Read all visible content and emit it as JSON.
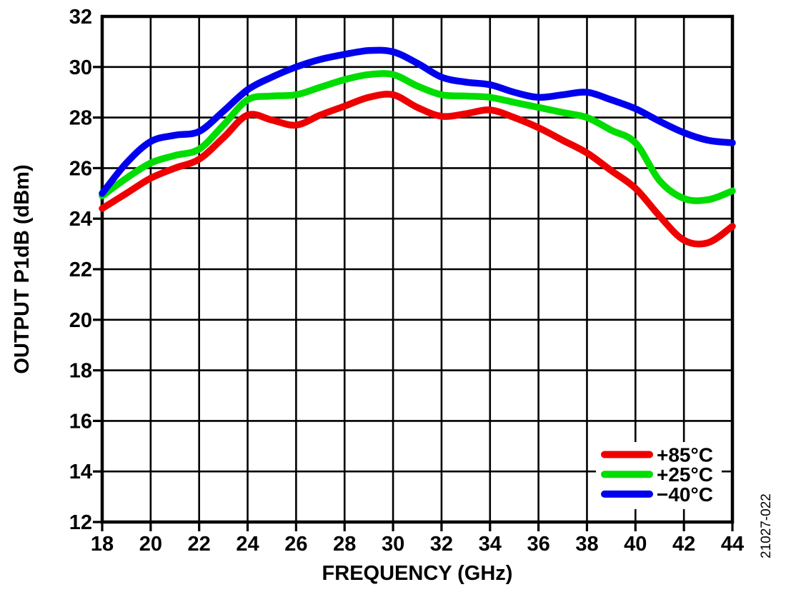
{
  "page": {
    "background": "#ffffff"
  },
  "chart_data": {
    "type": "line",
    "title": "",
    "xlabel": "FREQUENCY (GHz)",
    "ylabel": "OUTPUT P1dB (dBm)",
    "figure_code": "21027-022",
    "xlim": [
      18,
      44
    ],
    "ylim": [
      12,
      32
    ],
    "xticks": [
      18,
      20,
      22,
      24,
      26,
      28,
      30,
      32,
      34,
      36,
      38,
      40,
      42,
      44
    ],
    "yticks": [
      12,
      14,
      16,
      18,
      20,
      22,
      24,
      26,
      28,
      30,
      32
    ],
    "grid": true,
    "legend_position": "inside-bottom-right",
    "axis_color": "#000000",
    "x": [
      18,
      19,
      20,
      21,
      22,
      23,
      24,
      25,
      26,
      27,
      28,
      29,
      30,
      31,
      32,
      33,
      34,
      35,
      36,
      37,
      38,
      39,
      40,
      41,
      42,
      43,
      44
    ],
    "series": [
      {
        "name": "+85°C",
        "color": "#ee0000",
        "values": [
          24.4,
          25.0,
          25.6,
          26.0,
          26.35,
          27.2,
          28.1,
          27.9,
          27.7,
          28.1,
          28.45,
          28.8,
          28.9,
          28.4,
          28.05,
          28.15,
          28.3,
          28.0,
          27.6,
          27.1,
          26.6,
          25.9,
          25.2,
          24.1,
          23.15,
          23.05,
          23.7
        ]
      },
      {
        "name": "+25°C",
        "color": "#00dd00",
        "values": [
          24.9,
          25.6,
          26.2,
          26.5,
          26.75,
          27.7,
          28.7,
          28.85,
          28.9,
          29.2,
          29.5,
          29.7,
          29.7,
          29.25,
          28.9,
          28.85,
          28.8,
          28.6,
          28.4,
          28.2,
          28.0,
          27.5,
          27.0,
          25.5,
          24.8,
          24.75,
          25.1
        ]
      },
      {
        "name": "−40°C",
        "color": "#0000ee",
        "values": [
          25.0,
          26.2,
          27.05,
          27.3,
          27.45,
          28.25,
          29.1,
          29.6,
          30.0,
          30.3,
          30.5,
          30.65,
          30.6,
          30.15,
          29.6,
          29.4,
          29.3,
          29.0,
          28.8,
          28.9,
          29.0,
          28.7,
          28.35,
          27.85,
          27.4,
          27.1,
          27.0
        ]
      }
    ]
  }
}
